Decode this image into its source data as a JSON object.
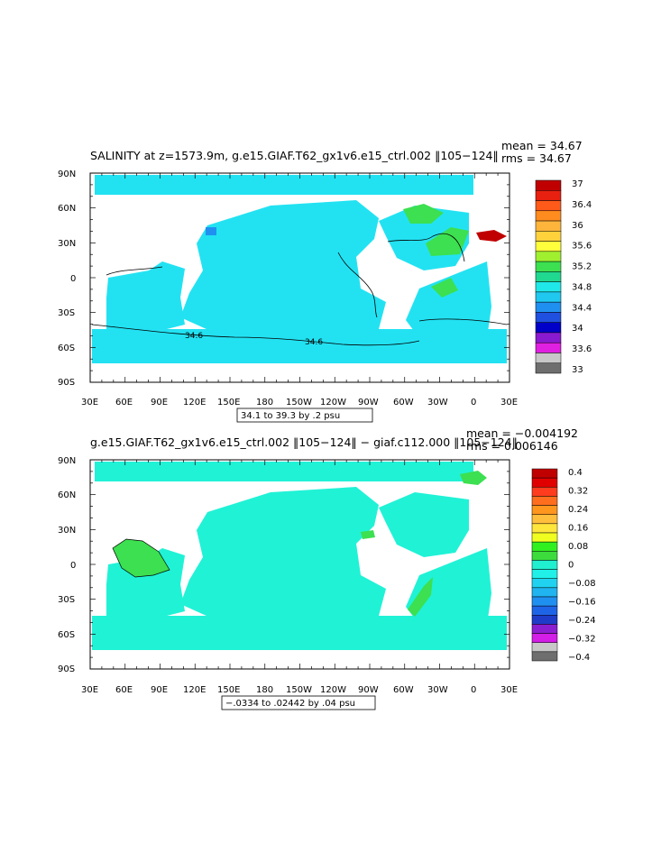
{
  "panels": [
    {
      "title": "SALINITY at z=1573.9m, g.e15.GIAF.T62_gx1v6.e15_ctrl.002 ‖105−124‖",
      "mean_text": "mean = 34.67",
      "rms_text": "rms = 34.67",
      "range_text": "34.1 to 39.3 by .2 psu",
      "contour_labels": [
        "34.6",
        "34.6"
      ],
      "colorbar_labels": [
        "37",
        "36.4",
        "36",
        "35.6",
        "35.2",
        "34.8",
        "34.4",
        "34",
        "33.6",
        "33"
      ],
      "colorbar_colors": [
        "#c00000",
        "#e82010",
        "#ff5a1a",
        "#ff8c1e",
        "#ffb43c",
        "#ffd23c",
        "#ffff3c",
        "#a0f030",
        "#3ce050",
        "#20d890",
        "#20e8e8",
        "#20c8f0",
        "#2090f0",
        "#2050e0",
        "#0000c8",
        "#8a1ad0",
        "#e020e0",
        "#c8c8c8",
        "#6e6e6e"
      ],
      "ocean_color": "#22e2f2"
    },
    {
      "title": "g.e15.GIAF.T62_gx1v6.e15_ctrl.002 ‖105−124‖ − giaf.c112.000 ‖105−124‖",
      "mean_text": "mean = −0.004192",
      "rms_text": "rms = 0.006146",
      "range_text": "−.0334 to .02442 by .04 psu",
      "colorbar_labels": [
        "0.4",
        "0.32",
        "0.24",
        "0.16",
        "0.08",
        "0",
        "−0.08",
        "−0.16",
        "−0.24",
        "−0.32",
        "−0.4"
      ],
      "colorbar_colors": [
        "#c00000",
        "#e00000",
        "#ff3c1e",
        "#ff6e1e",
        "#ff961e",
        "#ffbe3c",
        "#ffe63c",
        "#f0ff20",
        "#30f020",
        "#3cdc3c",
        "#20f0d0",
        "#20f0e8",
        "#20d2f0",
        "#20b4f0",
        "#2090f0",
        "#1e64e6",
        "#1e3cc8",
        "#8c1ed2",
        "#d21ee6",
        "#c8c8c8",
        "#6e6e6e"
      ],
      "ocean_color": "#20f2d6"
    }
  ],
  "axes": {
    "lat_labels": [
      "90N",
      "60N",
      "30N",
      "0",
      "30S",
      "60S",
      "90S"
    ],
    "lon_labels": [
      "30E",
      "60E",
      "90E",
      "120E",
      "150E",
      "180",
      "150W",
      "120W",
      "90W",
      "60W",
      "30W",
      "0",
      "30E"
    ]
  },
  "colors": {
    "land": "#ffffff",
    "frame": "#000000",
    "green_anomaly": "#3ce050",
    "red_hot": "#c00000"
  }
}
